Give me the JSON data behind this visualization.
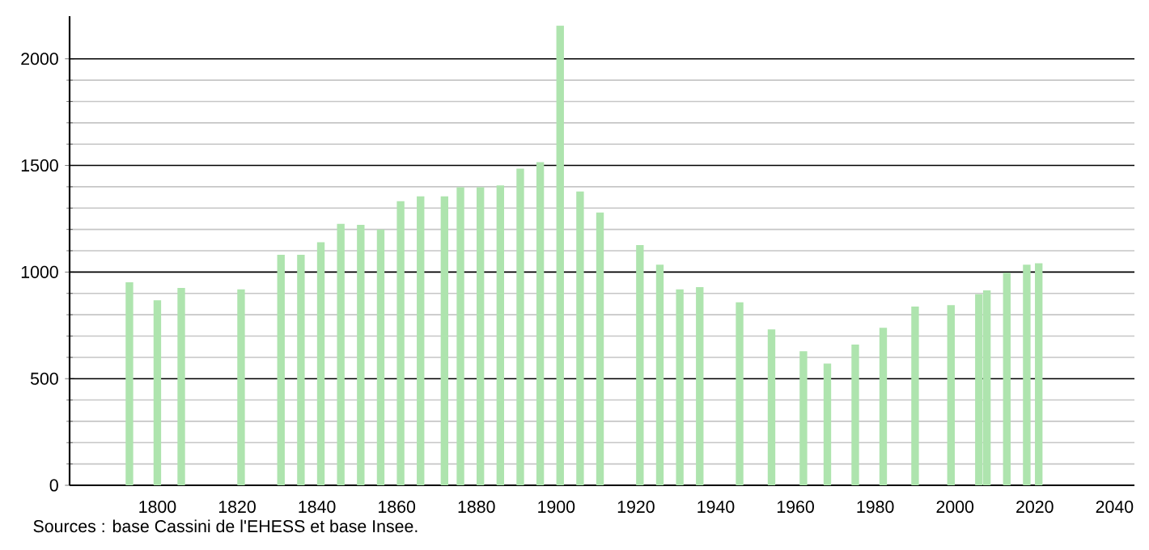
{
  "chart_data": {
    "type": "bar",
    "x": [
      1793,
      1800,
      1806,
      1821,
      1831,
      1836,
      1841,
      1846,
      1851,
      1856,
      1861,
      1866,
      1872,
      1876,
      1881,
      1886,
      1891,
      1896,
      1901,
      1906,
      1911,
      1921,
      1926,
      1931,
      1936,
      1946,
      1954,
      1962,
      1968,
      1975,
      1982,
      1990,
      1999,
      2006,
      2008,
      2013,
      2018,
      2021
    ],
    "values": [
      952,
      868,
      926,
      919,
      1081,
      1081,
      1140,
      1226,
      1221,
      1200,
      1332,
      1355,
      1355,
      1398,
      1398,
      1406,
      1485,
      1515,
      2155,
      1378,
      1279,
      1127,
      1035,
      919,
      929,
      858,
      731,
      629,
      571,
      660,
      739,
      838,
      845,
      896,
      914,
      997,
      1035,
      1041
    ],
    "color": "#aee4ae",
    "xlim": [
      1778,
      2045
    ],
    "xticks": [
      1800,
      1820,
      1840,
      1860,
      1880,
      1900,
      1920,
      1940,
      1960,
      1980,
      2000,
      2020,
      2040
    ],
    "ylim": [
      0,
      2200
    ],
    "yticks": [
      0,
      500,
      1000,
      1500,
      2000
    ],
    "grid": "y",
    "annotations": [
      "Sources : base Cassini de l'EHESS et base Insee."
    ]
  }
}
